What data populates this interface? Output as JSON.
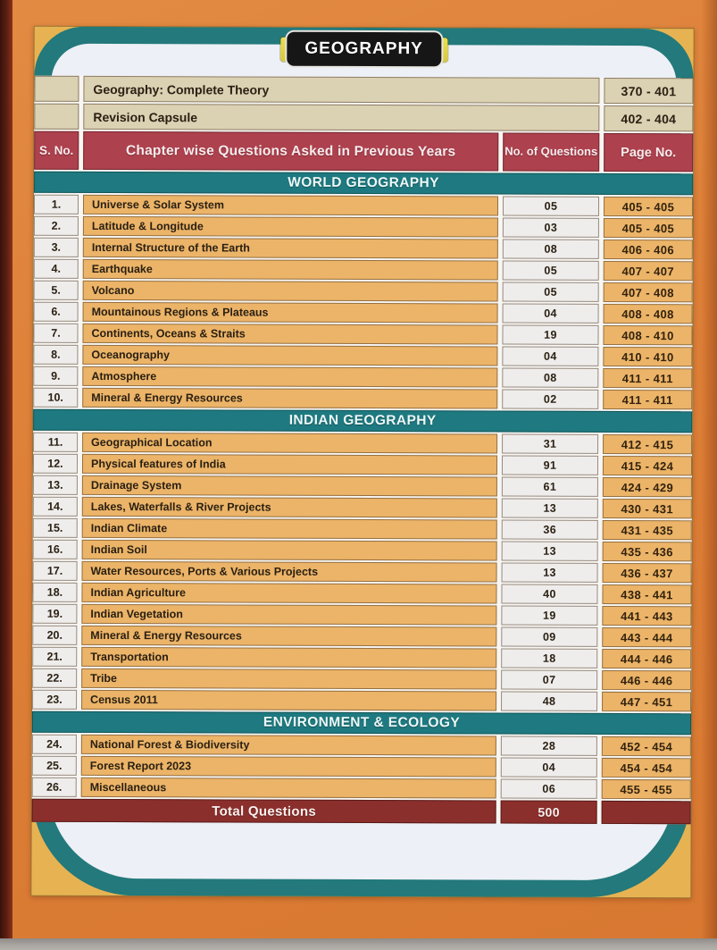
{
  "badge": {
    "label": "GEOGRAPHY"
  },
  "intro": [
    {
      "label": "Geography: Complete Theory",
      "pages": "370 - 401"
    },
    {
      "label": "Revision Capsule",
      "pages": "402 - 404"
    }
  ],
  "table_header": {
    "s_no": "S. No.",
    "chapter": "Chapter wise Questions Asked in Previous Years",
    "questions": "No. of Questions",
    "page_no": "Page No."
  },
  "sections": [
    {
      "title": "WORLD GEOGRAPHY",
      "rows": [
        {
          "no": "1.",
          "chapter": "Universe & Solar System",
          "questions": "05",
          "pages": "405 - 405"
        },
        {
          "no": "2.",
          "chapter": "Latitude & Longitude",
          "questions": "03",
          "pages": "405 - 405"
        },
        {
          "no": "3.",
          "chapter": "Internal Structure of the Earth",
          "questions": "08",
          "pages": "406 - 406"
        },
        {
          "no": "4.",
          "chapter": "Earthquake",
          "questions": "05",
          "pages": "407 - 407"
        },
        {
          "no": "5.",
          "chapter": "Volcano",
          "questions": "05",
          "pages": "407 - 408"
        },
        {
          "no": "6.",
          "chapter": "Mountainous Regions & Plateaus",
          "questions": "04",
          "pages": "408 - 408"
        },
        {
          "no": "7.",
          "chapter": "Continents, Oceans & Straits",
          "questions": "19",
          "pages": "408 - 410"
        },
        {
          "no": "8.",
          "chapter": "Oceanography",
          "questions": "04",
          "pages": "410 - 410"
        },
        {
          "no": "9.",
          "chapter": "Atmosphere",
          "questions": "08",
          "pages": "411 - 411"
        },
        {
          "no": "10.",
          "chapter": "Mineral & Energy Resources",
          "questions": "02",
          "pages": "411 - 411"
        }
      ]
    },
    {
      "title": "INDIAN GEOGRAPHY",
      "rows": [
        {
          "no": "11.",
          "chapter": "Geographical Location",
          "questions": "31",
          "pages": "412 - 415"
        },
        {
          "no": "12.",
          "chapter": "Physical features of India",
          "questions": "91",
          "pages": "415 - 424"
        },
        {
          "no": "13.",
          "chapter": "Drainage System",
          "questions": "61",
          "pages": "424 - 429"
        },
        {
          "no": "14.",
          "chapter": "Lakes, Waterfalls & River Projects",
          "questions": "13",
          "pages": "430 - 431"
        },
        {
          "no": "15.",
          "chapter": "Indian Climate",
          "questions": "36",
          "pages": "431 - 435"
        },
        {
          "no": "16.",
          "chapter": "Indian Soil",
          "questions": "13",
          "pages": "435 - 436"
        },
        {
          "no": "17.",
          "chapter": "Water Resources, Ports & Various Projects",
          "questions": "13",
          "pages": "436 - 437"
        },
        {
          "no": "18.",
          "chapter": "Indian Agriculture",
          "questions": "40",
          "pages": "438 - 441"
        },
        {
          "no": "19.",
          "chapter": "Indian Vegetation",
          "questions": "19",
          "pages": "441 - 443"
        },
        {
          "no": "20.",
          "chapter": "Mineral & Energy Resources",
          "questions": "09",
          "pages": "443 - 444"
        },
        {
          "no": "21.",
          "chapter": "Transportation",
          "questions": "18",
          "pages": "444 - 446"
        },
        {
          "no": "22.",
          "chapter": "Tribe",
          "questions": "07",
          "pages": "446 - 446"
        },
        {
          "no": "23.",
          "chapter": "Census 2011",
          "questions": "48",
          "pages": "447 - 451"
        }
      ]
    },
    {
      "title": "ENVIRONMENT & ECOLOGY",
      "rows": [
        {
          "no": "24.",
          "chapter": "National Forest & Biodiversity",
          "questions": "28",
          "pages": "452 - 454"
        },
        {
          "no": "25.",
          "chapter": "Forest Report 2023",
          "questions": "04",
          "pages": "454 - 454"
        },
        {
          "no": "26.",
          "chapter": "Miscellaneous",
          "questions": "06",
          "pages": "455 - 455"
        }
      ]
    }
  ],
  "total": {
    "label": "Total Questions",
    "value": "500"
  },
  "colors": {
    "background_orange": "#dd7f37",
    "spine_maroon": "#5d1f12",
    "gold_ring": "#e7b352",
    "teal_ring": "#23797b",
    "section_band_teal": "#1e7a80",
    "header_crimson": "#ad414d",
    "chapter_cell_orange": "#ecb468",
    "number_cell_light": "#efedec",
    "intro_cell_beige": "#dbd1b3",
    "total_row_maroon": "#8b2f2c",
    "badge_black": "#161616",
    "badge_yellow": "#e2d34b",
    "text_dark": "#2a2013"
  }
}
